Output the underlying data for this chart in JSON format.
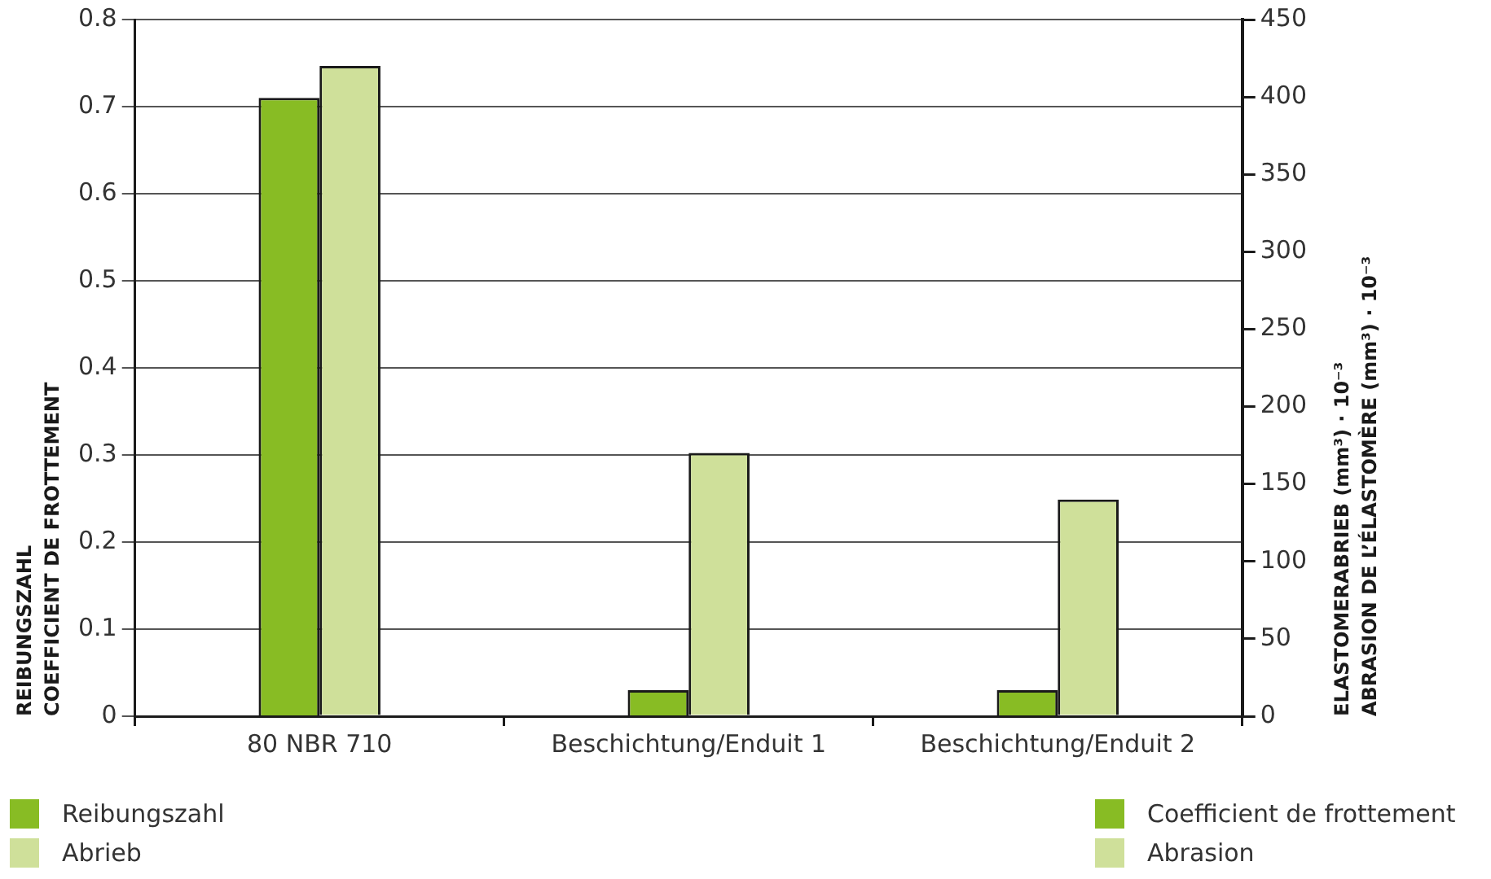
{
  "chart_data": {
    "type": "bar",
    "categories": [
      "80 NBR 710",
      "Beschichtung/Enduit 1",
      "Beschichtung/Enduit 2"
    ],
    "series": [
      {
        "name": "Reibungszahl",
        "color": "#88bc24",
        "values": [
          0.71,
          0.03,
          0.03
        ]
      },
      {
        "name": "Abrieb",
        "color": "#cfe09a",
        "values": [
          420,
          170,
          140
        ],
        "axis": "y2"
      }
    ],
    "ylabel": "REIBUNGSZAHL\nCOEFFICIENT DE FROTTEMENT",
    "y2label": "ELASTOMERABRIEB (mm³) · 10⁻³\nABRASION DE L’ÉLASTOMÈRE (mm³) · 10⁻³",
    "ylim": [
      0,
      0.8
    ],
    "yticks": [
      0,
      0.1,
      0.2,
      0.3,
      0.4,
      0.5,
      0.6,
      0.7,
      0.8
    ],
    "y2lim": [
      0,
      450
    ],
    "y2ticks": [
      0,
      50,
      100,
      150,
      200,
      250,
      300,
      350,
      400,
      450
    ],
    "grid": "y",
    "legend": "bottom",
    "annotations": [
      "Coefficient de frottement",
      "Abrasion"
    ]
  }
}
